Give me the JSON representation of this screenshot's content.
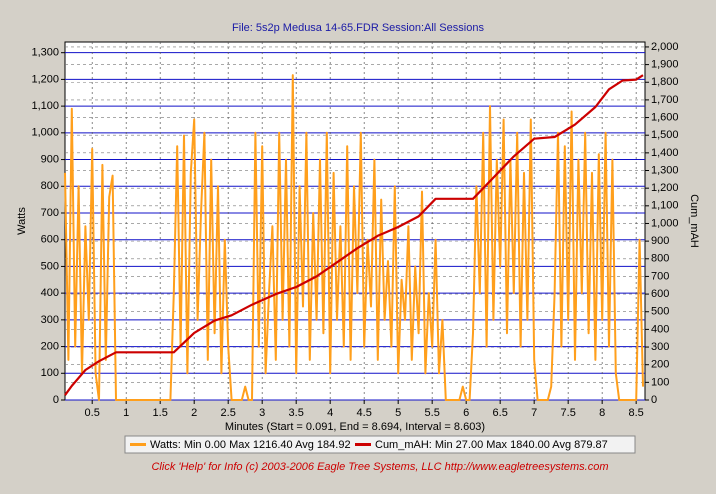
{
  "chart_data": {
    "type": "line",
    "title": "File: 5s2p Medusa 14-65.FDR   Session:All Sessions",
    "xlabel": "Minutes (Start = 0.091,  End = 8.694,  Interval = 8.603)",
    "ylabel": "Watts",
    "y2label": "Cum_mAH",
    "footer": "Click 'Help' for Info  (c) 2003-2006 Eagle Tree Systems, LLC      http://www.eagletreesystems.com",
    "xlim": [
      0.1,
      8.63
    ],
    "xticks": [
      0.5,
      1,
      1.5,
      2,
      2.5,
      3,
      3.5,
      4,
      4.5,
      5,
      5.5,
      6,
      6.5,
      7,
      7.5,
      8,
      8.5
    ],
    "ylim": [
      0,
      1340
    ],
    "yticks": [
      0,
      100,
      200,
      300,
      400,
      500,
      600,
      700,
      800,
      900,
      {
        "value": 1000,
        "label": "1,000"
      },
      {
        "value": 1100,
        "label": "1,100"
      },
      {
        "value": 1200,
        "label": "1,200"
      },
      {
        "value": 1300,
        "label": "1,300"
      }
    ],
    "y2lim": [
      0,
      2028
    ],
    "y2ticks": [
      0,
      100,
      200,
      300,
      400,
      500,
      600,
      700,
      800,
      900,
      {
        "value": 1000,
        "label": "1,000"
      },
      {
        "value": 1100,
        "label": "1,100"
      },
      {
        "value": 1200,
        "label": "1,200"
      },
      {
        "value": 1300,
        "label": "1,300"
      },
      {
        "value": 1400,
        "label": "1,400"
      },
      {
        "value": 1500,
        "label": "1,500"
      },
      {
        "value": 1600,
        "label": "1,600"
      },
      {
        "value": 1700,
        "label": "1,700"
      },
      {
        "value": 1800,
        "label": "1,800"
      },
      {
        "value": 1900,
        "label": "1,900"
      },
      {
        "value": 2000,
        "label": "2,000"
      }
    ],
    "grid": true,
    "series": [
      {
        "name": "Watts:  Min 0.00 Max 1216.40 Avg 184.92",
        "color": "#ff9f1c",
        "axis": "y",
        "x": [
          0.1,
          0.15,
          0.2,
          0.25,
          0.3,
          0.35,
          0.4,
          0.45,
          0.5,
          0.55,
          0.6,
          0.65,
          0.7,
          0.75,
          0.8,
          0.85,
          0.9,
          0.95,
          1,
          1.05,
          1.1,
          1.15,
          1.2,
          1.25,
          1.3,
          1.35,
          1.4,
          1.45,
          1.5,
          1.55,
          1.6,
          1.65,
          1.7,
          1.75,
          1.8,
          1.85,
          1.9,
          1.95,
          2,
          2.05,
          2.1,
          2.15,
          2.2,
          2.25,
          2.3,
          2.35,
          2.4,
          2.45,
          2.5,
          2.55,
          2.6,
          2.65,
          2.7,
          2.75,
          2.8,
          2.85,
          2.9,
          2.95,
          3,
          3.05,
          3.1,
          3.15,
          3.2,
          3.25,
          3.3,
          3.35,
          3.4,
          3.45,
          3.5,
          3.55,
          3.6,
          3.65,
          3.7,
          3.75,
          3.8,
          3.85,
          3.9,
          3.95,
          4,
          4.05,
          4.1,
          4.15,
          4.2,
          4.25,
          4.3,
          4.35,
          4.4,
          4.45,
          4.5,
          4.55,
          4.6,
          4.65,
          4.7,
          4.75,
          4.8,
          4.85,
          4.9,
          4.95,
          5,
          5.05,
          5.1,
          5.15,
          5.2,
          5.25,
          5.3,
          5.35,
          5.4,
          5.45,
          5.5,
          5.55,
          5.6,
          5.65,
          5.7,
          5.75,
          5.8,
          5.85,
          5.9,
          5.95,
          6,
          6.05,
          6.1,
          6.15,
          6.2,
          6.25,
          6.3,
          6.35,
          6.4,
          6.45,
          6.5,
          6.55,
          6.6,
          6.65,
          6.7,
          6.75,
          6.8,
          6.85,
          6.9,
          6.95,
          7,
          7.05,
          7.1,
          7.15,
          7.2,
          7.25,
          7.3,
          7.35,
          7.4,
          7.45,
          7.5,
          7.55,
          7.6,
          7.65,
          7.7,
          7.75,
          7.8,
          7.85,
          7.9,
          7.95,
          8,
          8.05,
          8.1,
          8.15,
          8.2,
          8.25,
          8.3,
          8.35,
          8.4,
          8.45,
          8.5,
          8.55,
          8.6
        ],
        "values": [
          850,
          150,
          1090,
          200,
          800,
          100,
          650,
          300,
          940,
          100,
          0,
          880,
          150,
          760,
          840,
          0,
          0,
          0,
          0,
          0,
          0,
          0,
          0,
          0,
          0,
          0,
          0,
          0,
          0,
          0,
          0,
          0,
          400,
          950,
          200,
          990,
          100,
          850,
          1050,
          300,
          700,
          1000,
          150,
          900,
          250,
          800,
          100,
          600,
          200,
          0,
          0,
          0,
          0,
          50,
          0,
          0,
          1000,
          200,
          950,
          100,
          400,
          650,
          150,
          1000,
          300,
          900,
          200,
          1216,
          100,
          800,
          350,
          1000,
          150,
          700,
          300,
          900,
          250,
          1000,
          100,
          850,
          300,
          650,
          200,
          950,
          150,
          800,
          400,
          1000,
          200,
          600,
          350,
          900,
          150,
          750,
          300,
          520,
          200,
          800,
          100,
          450,
          300,
          650,
          150,
          500,
          250,
          780,
          100,
          400,
          200,
          600,
          100,
          300,
          0,
          0,
          0,
          0,
          0,
          50,
          0,
          0,
          250,
          800,
          400,
          1000,
          200,
          1100,
          300,
          900,
          500,
          1050,
          250,
          900,
          400,
          1000,
          200,
          850,
          300,
          1050,
          150,
          0,
          0,
          0,
          0,
          50,
          400,
          1000,
          200,
          950,
          300,
          1080,
          150,
          900,
          400,
          1000,
          250,
          850,
          150,
          920,
          300,
          1000,
          200,
          900,
          100,
          0,
          0,
          0,
          0,
          0,
          0,
          600,
          50
        ]
      },
      {
        "name": "Cum_mAH:  Min 27.00 Max 1840.00 Avg 879.87",
        "color": "#cc0000",
        "axis": "y2",
        "x": [
          0.1,
          0.2,
          0.4,
          0.6,
          0.85,
          1.7,
          2.0,
          2.3,
          2.55,
          2.85,
          3.2,
          3.5,
          3.8,
          4.1,
          4.4,
          4.7,
          5.0,
          5.3,
          5.55,
          6.1,
          6.4,
          6.7,
          7.0,
          7.3,
          7.6,
          7.9,
          8.1,
          8.3,
          8.5,
          8.6
        ],
        "values": [
          27,
          80,
          170,
          220,
          270,
          270,
          380,
          450,
          480,
          540,
          600,
          640,
          700,
          780,
          860,
          930,
          980,
          1040,
          1140,
          1140,
          1260,
          1380,
          1480,
          1490,
          1560,
          1660,
          1760,
          1810,
          1815,
          1840
        ]
      }
    ]
  }
}
